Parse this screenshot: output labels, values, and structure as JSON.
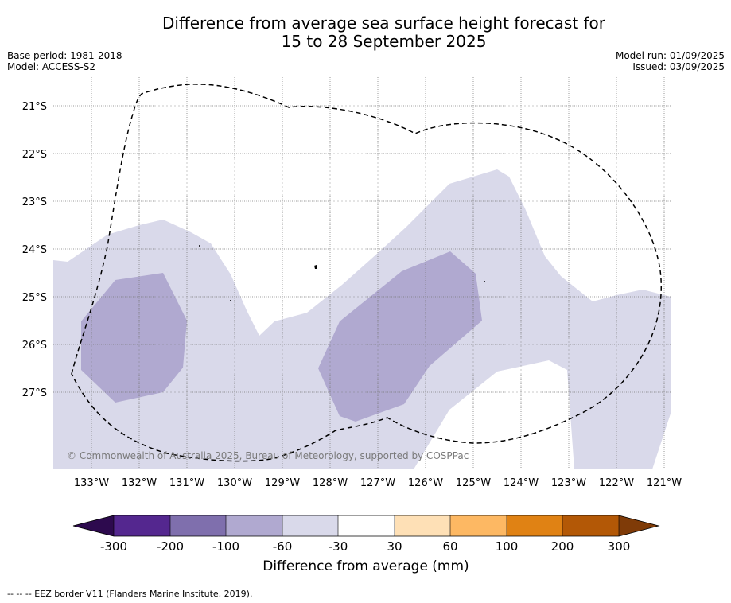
{
  "title": {
    "line1": "Difference from average sea surface height forecast for",
    "line2": "15 to 28 September 2025"
  },
  "meta": {
    "base_period": "Base period: 1981-2018",
    "model": "Model: ACCESS-S2",
    "model_run": "Model run: 01/09/2025",
    "issued": "Issued: 03/09/2025"
  },
  "map": {
    "lat_labels": [
      "21°S",
      "22°S",
      "23°S",
      "24°S",
      "25°S",
      "26°S",
      "27°S"
    ],
    "lon_labels": [
      "133°W",
      "132°W",
      "131°W",
      "130°W",
      "129°W",
      "128°W",
      "127°W",
      "126°W",
      "125°W",
      "124°W",
      "123°W",
      "122°W",
      "121°W"
    ],
    "copyright": "© Commonwealth of Australia 2025, Bureau of Meteorology, supported by COSPPac"
  },
  "colorbar": {
    "tick_labels": [
      "-300",
      "-200",
      "-100",
      "-60",
      "-30",
      "30",
      "60",
      "100",
      "200",
      "300"
    ],
    "colors": [
      "#2d0a4e",
      "#54278f",
      "#7f6fad",
      "#b0a9d0",
      "#d9d9ea",
      "#ffffff",
      "#fee0b6",
      "#fdb863",
      "#e08214",
      "#b35806",
      "#7f3b08"
    ],
    "label": "Difference from average (mm)"
  },
  "legend_note": "--  --  -- EEZ border V11 (Flanders Marine Institute, 2019)."
}
